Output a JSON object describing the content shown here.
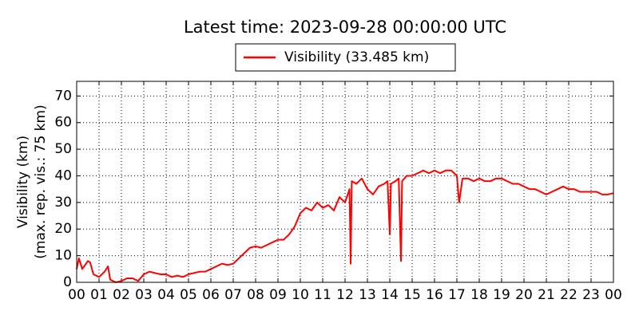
{
  "chart_data": {
    "type": "line",
    "title": "Latest time: 2023-09-28 00:00:00 UTC",
    "ylabel": [
      "Visibility (km)",
      "(max. rep. vis.: 75 km)"
    ],
    "x": [
      0,
      0.1,
      0.25,
      0.5,
      0.6,
      0.75,
      1,
      1.25,
      1.4,
      1.5,
      1.75,
      2,
      2.25,
      2.5,
      2.75,
      3,
      3.25,
      3.5,
      3.75,
      4,
      4.25,
      4.5,
      4.75,
      5,
      5.25,
      5.5,
      5.75,
      6,
      6.25,
      6.5,
      6.75,
      7,
      7.25,
      7.5,
      7.75,
      8,
      8.25,
      8.5,
      8.75,
      9,
      9.25,
      9.5,
      9.75,
      10,
      10.25,
      10.5,
      10.75,
      11,
      11.25,
      11.5,
      11.75,
      12,
      12.2,
      12.25,
      12.3,
      12.5,
      12.75,
      13,
      13.25,
      13.5,
      13.75,
      13.9,
      14,
      14.05,
      14.25,
      14.4,
      14.5,
      14.55,
      14.75,
      15,
      15.25,
      15.5,
      15.75,
      16,
      16.25,
      16.5,
      16.75,
      17,
      17.1,
      17.25,
      17.5,
      17.75,
      18,
      18.25,
      18.5,
      18.75,
      19,
      19.25,
      19.5,
      19.75,
      20,
      20.25,
      20.5,
      20.75,
      21,
      21.25,
      21.5,
      21.75,
      22,
      22.25,
      22.5,
      22.75,
      23,
      23.25,
      23.5,
      23.75,
      24
    ],
    "series": [
      {
        "name": "Visibility (33.485 km)",
        "color": "#ff0000",
        "values": [
          5,
          9,
          5,
          8,
          7.5,
          3,
          2,
          4,
          6,
          1,
          0,
          0.5,
          1.5,
          1.5,
          0.5,
          3,
          4,
          3.5,
          3,
          3,
          2,
          2.5,
          2,
          3,
          3.5,
          4,
          4,
          5,
          6,
          7,
          6.5,
          7,
          9,
          11,
          13,
          13.5,
          13,
          14,
          15,
          16,
          16,
          18,
          21,
          26,
          28,
          27,
          30,
          28,
          29,
          27,
          32,
          30,
          35,
          7,
          38,
          37,
          39,
          35,
          33,
          36,
          37,
          38,
          18,
          37,
          38,
          39,
          8,
          38,
          40,
          40,
          41,
          42,
          41,
          42,
          41,
          42,
          42,
          40,
          30,
          39,
          39,
          38,
          39,
          38,
          38,
          39,
          39,
          38,
          37,
          37,
          36,
          35,
          35,
          34,
          33,
          34,
          35,
          36,
          35,
          35,
          34,
          34,
          34,
          34,
          33,
          33,
          33.5
        ]
      }
    ],
    "xlim": [
      0,
      24
    ],
    "ylim": [
      0,
      75.5
    ],
    "xticks": [
      {
        "value": 0,
        "label": "00"
      },
      {
        "value": 1,
        "label": "01"
      },
      {
        "value": 2,
        "label": "02"
      },
      {
        "value": 3,
        "label": "03"
      },
      {
        "value": 4,
        "label": "04"
      },
      {
        "value": 5,
        "label": "05"
      },
      {
        "value": 6,
        "label": "06"
      },
      {
        "value": 7,
        "label": "07"
      },
      {
        "value": 8,
        "label": "08"
      },
      {
        "value": 9,
        "label": "09"
      },
      10,
      11,
      12,
      13,
      14,
      15,
      16,
      17,
      18,
      19,
      20,
      21,
      22,
      23,
      {
        "value": 24,
        "label": "00"
      }
    ],
    "yticks": [
      0,
      10,
      20,
      30,
      40,
      50,
      60,
      70
    ],
    "grid": true
  }
}
